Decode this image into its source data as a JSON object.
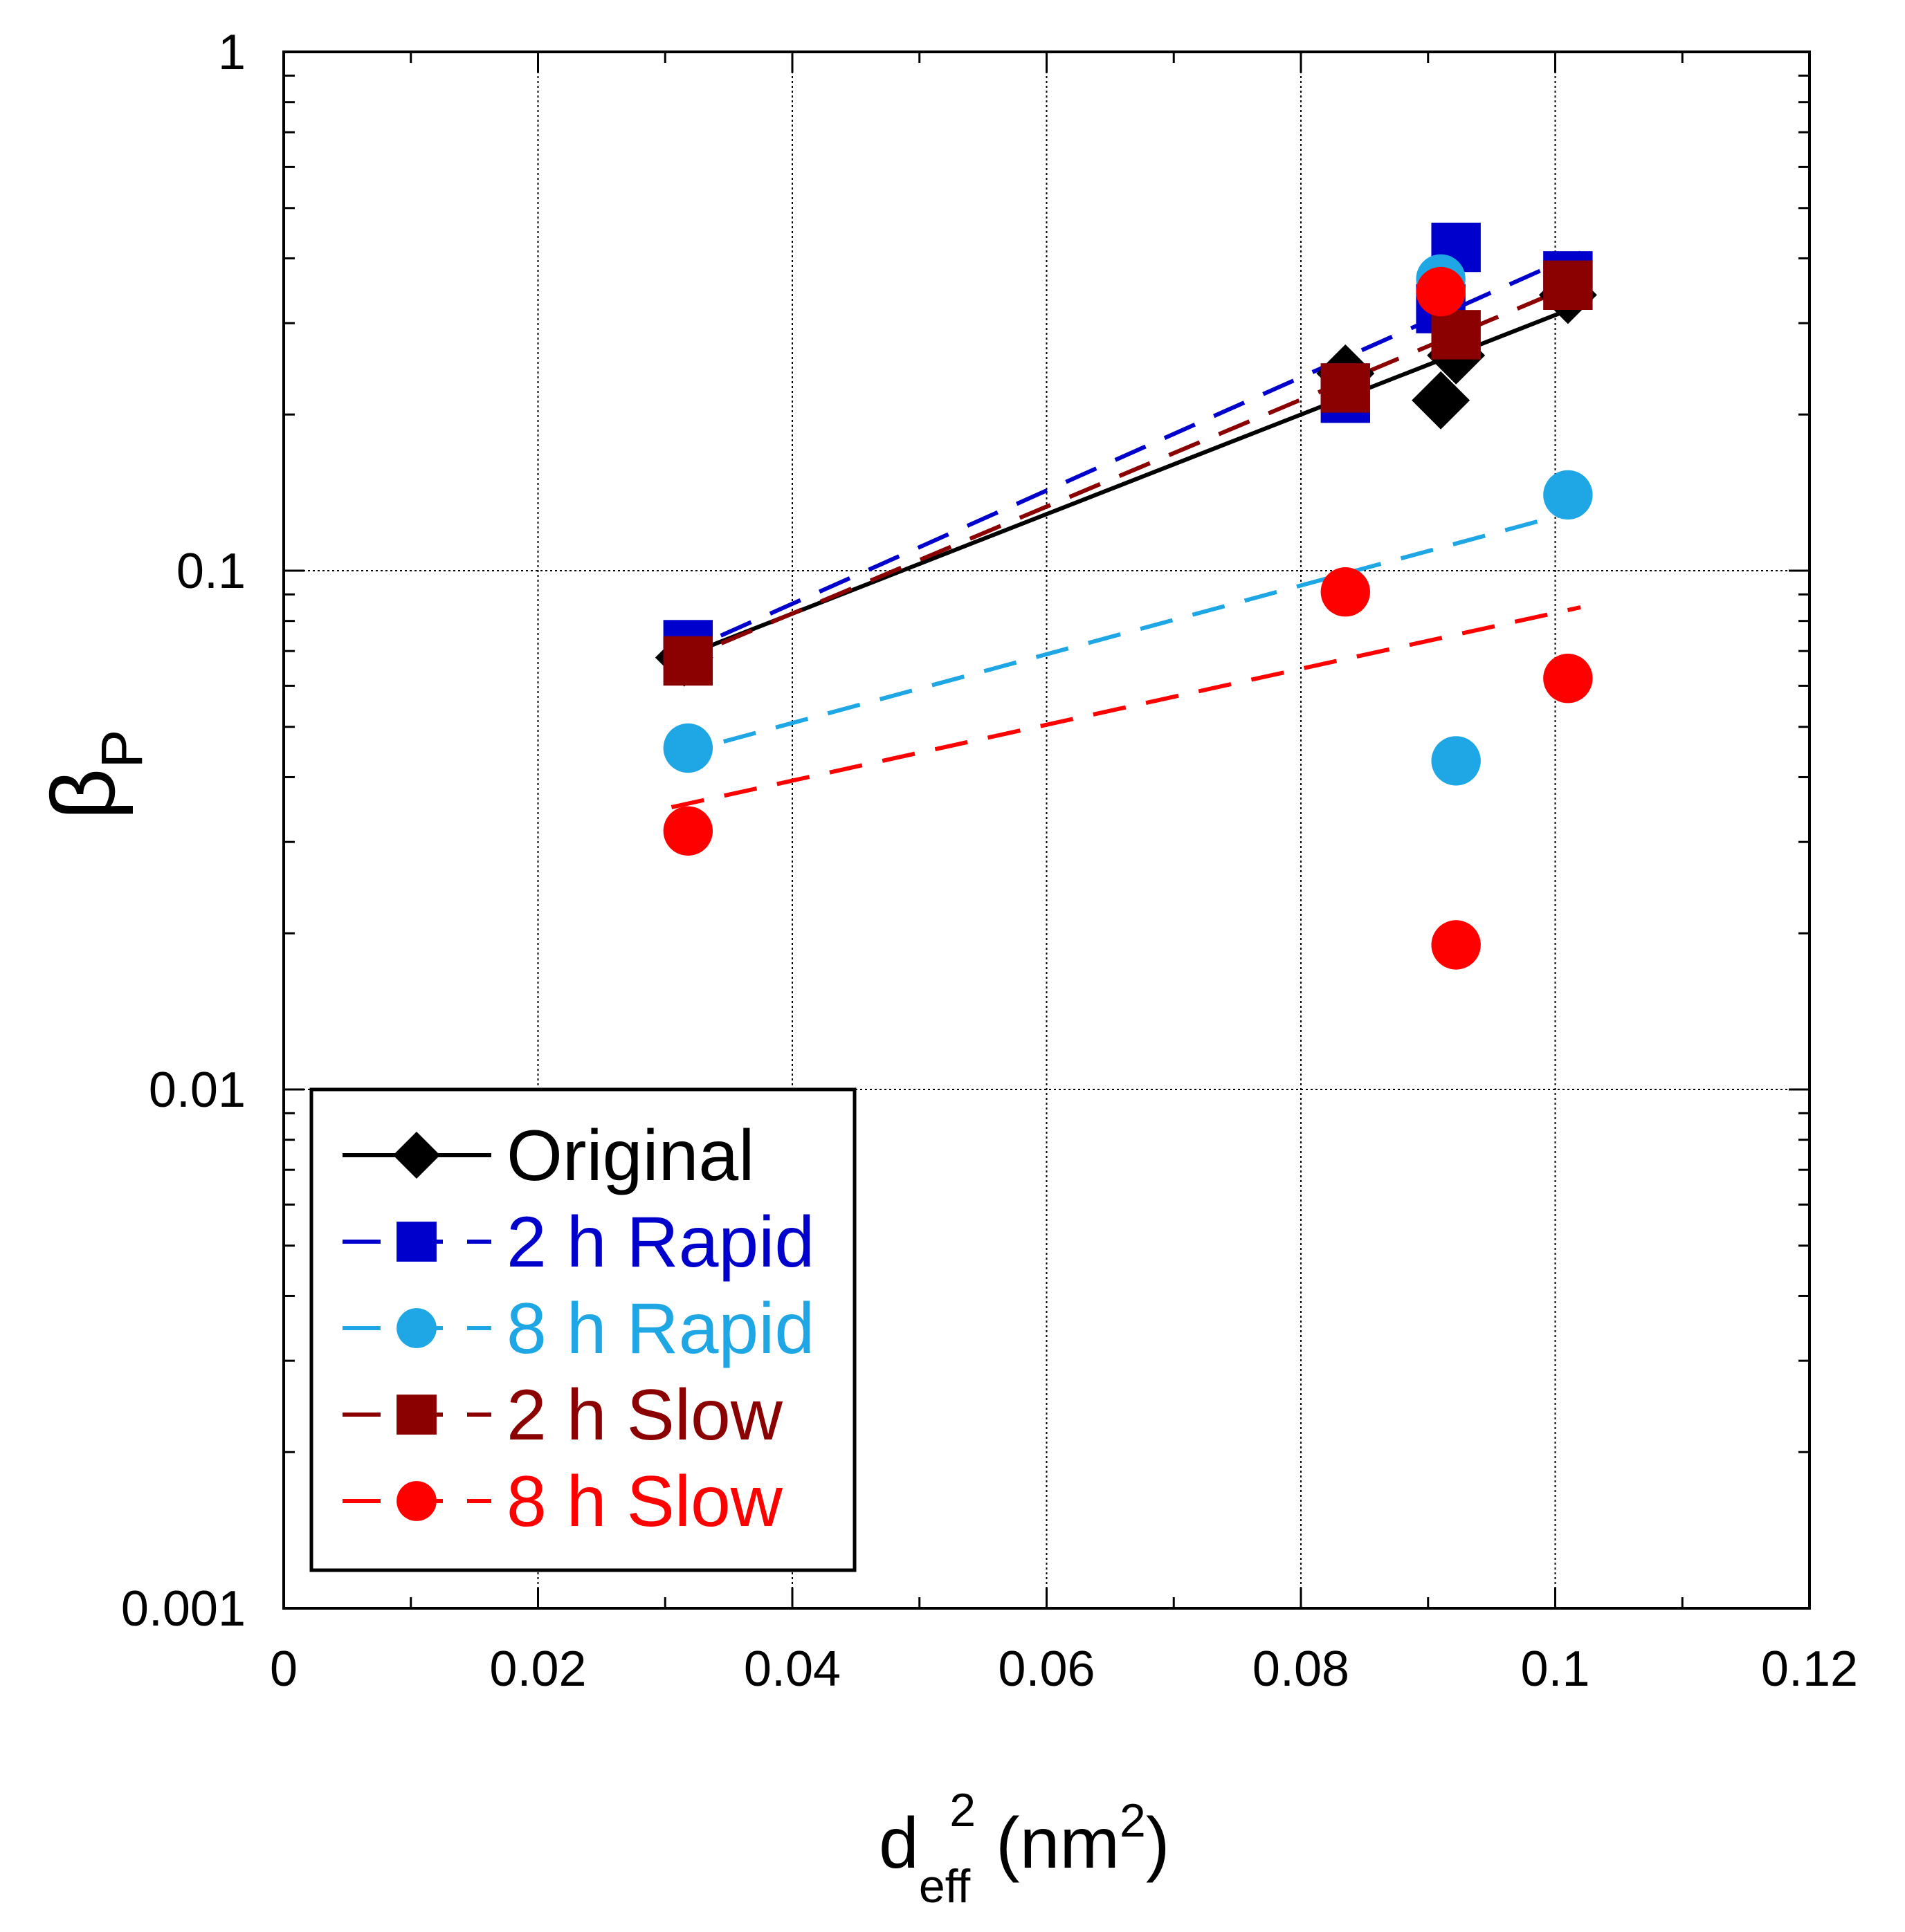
{
  "chart_data": {
    "type": "scatter",
    "x_scale": "linear",
    "y_scale": "log",
    "xlim": [
      0,
      0.12
    ],
    "ylim": [
      0.001,
      1
    ],
    "x_ticks": [
      "0",
      "0.02",
      "0.04",
      "0.06",
      "0.08",
      "0.1",
      "0.12"
    ],
    "x_tick_values": [
      0,
      0.02,
      0.04,
      0.06,
      0.08,
      0.1,
      0.12
    ],
    "y_ticks": [
      "0.001",
      "0.01",
      "0.1",
      "1"
    ],
    "y_tick_values": [
      0.001,
      0.01,
      0.1,
      1
    ],
    "xlabel": {
      "base": "d",
      "sub": "eff",
      "sup": "2",
      "rest": " (nm",
      "rest_sup": "2",
      "close": ")"
    },
    "ylabel": {
      "base": "β",
      "sub": "P"
    },
    "grid": true,
    "legend_position": "bottom-left",
    "series": [
      {
        "name": "Original",
        "color": "#000000",
        "marker": "diamond",
        "line": "solid",
        "x": [
          0.0315,
          0.0835,
          0.091,
          0.0922,
          0.101
        ],
        "y": [
          0.068,
          0.24,
          0.213,
          0.26,
          0.34
        ],
        "fit": {
          "x": [
            0.0305,
            0.102
          ],
          "y": [
            0.067,
            0.325
          ]
        }
      },
      {
        "name": "2 h Rapid",
        "color": "#0000cc",
        "marker": "square",
        "line": "dashed",
        "x": [
          0.0318,
          0.0835,
          0.091,
          0.0922,
          0.101
        ],
        "y": [
          0.072,
          0.215,
          0.32,
          0.42,
          0.37
        ],
        "fit": {
          "x": [
            0.0305,
            0.102
          ],
          "y": [
            0.068,
            0.41
          ]
        }
      },
      {
        "name": "8 h Rapid",
        "color": "#1ea7e4",
        "marker": "circle",
        "line": "dashed",
        "x": [
          0.0318,
          0.091,
          0.0922,
          0.101
        ],
        "y": [
          0.0455,
          0.365,
          0.043,
          0.14
        ],
        "fit": {
          "x": [
            0.0305,
            0.102
          ],
          "y": [
            0.044,
            0.131
          ]
        }
      },
      {
        "name": "2 h Slow",
        "color": "#8b0000",
        "marker": "square",
        "line": "dashed",
        "x": [
          0.0318,
          0.0835,
          0.0922,
          0.101
        ],
        "y": [
          0.067,
          0.225,
          0.285,
          0.355
        ],
        "fit": {
          "x": [
            0.0305,
            0.102
          ],
          "y": [
            0.066,
            0.36
          ]
        }
      },
      {
        "name": "8 h Slow",
        "color": "#ff0000",
        "marker": "circle",
        "line": "dashed",
        "x": [
          0.0318,
          0.0835,
          0.091,
          0.0922,
          0.101
        ],
        "y": [
          0.0315,
          0.091,
          0.345,
          0.019,
          0.062
        ],
        "fit": {
          "x": [
            0.0305,
            0.102
          ],
          "y": [
            0.035,
            0.085
          ]
        }
      }
    ]
  }
}
